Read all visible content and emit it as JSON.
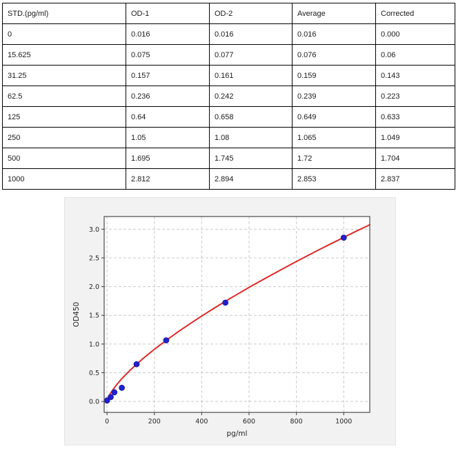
{
  "table": {
    "columns": [
      "STD.(pg/ml)",
      "OD-1",
      "OD-2",
      "Average",
      "Corrected"
    ],
    "rows": [
      [
        "0",
        "0.016",
        "0.016",
        "0.016",
        "0.000"
      ],
      [
        "15.625",
        "0.075",
        "0.077",
        "0.076",
        "0.06"
      ],
      [
        "31.25",
        "0.157",
        "0.161",
        "0.159",
        "0.143"
      ],
      [
        "62.5",
        "0.236",
        "0.242",
        "0.239",
        "0.223"
      ],
      [
        "125",
        "0.64",
        "0.658",
        "0.649",
        "0.633"
      ],
      [
        "250",
        "1.05",
        "1.08",
        "1.065",
        "1.049"
      ],
      [
        "500",
        "1.695",
        "1.745",
        "1.72",
        "1.704"
      ],
      [
        "1000",
        "2.812",
        "2.894",
        "2.853",
        "2.837"
      ]
    ]
  },
  "chart_data": {
    "type": "scatter",
    "title": "",
    "xlabel": "pg/ml",
    "ylabel": "OD450",
    "xlim": [
      -12,
      1110
    ],
    "ylim": [
      -0.19,
      3.22
    ],
    "xticks": [
      0,
      200,
      400,
      600,
      800,
      1000
    ],
    "yticks": [
      0.0,
      0.5,
      1.0,
      1.5,
      2.0,
      2.5,
      3.0
    ],
    "grid": "dashed",
    "legend": "none",
    "figure_bg": "#f2f2f2",
    "plot_bg": "#ffffff",
    "grid_color": "#c9c9c9",
    "spine_color": "#4a4a4a",
    "tick_color": "#333333",
    "text_color": "#262626",
    "series": [
      {
        "name": "standard-points",
        "type": "scatter",
        "color": "#2121cc",
        "x": [
          0,
          15.625,
          31.25,
          62.5,
          125,
          250,
          500,
          1000
        ],
        "y": [
          0.016,
          0.076,
          0.159,
          0.239,
          0.649,
          1.065,
          1.72,
          2.853
        ]
      },
      {
        "name": "fit-curve",
        "type": "line",
        "color": "#e02626",
        "x": [
          0,
          5,
          10,
          20,
          40,
          60,
          80,
          100,
          150,
          200,
          250,
          300,
          350,
          400,
          450,
          500,
          550,
          600,
          650,
          700,
          750,
          800,
          850,
          900,
          950,
          1000,
          1050,
          1100,
          1110
        ],
        "y": [
          0,
          0.066,
          0.107,
          0.176,
          0.288,
          0.385,
          0.472,
          0.553,
          0.74,
          0.908,
          1.063,
          1.212,
          1.352,
          1.487,
          1.617,
          1.744,
          1.866,
          1.986,
          2.102,
          2.215,
          2.327,
          2.437,
          2.545,
          2.651,
          2.754,
          2.856,
          2.959,
          3.057,
          3.078
        ]
      }
    ]
  }
}
